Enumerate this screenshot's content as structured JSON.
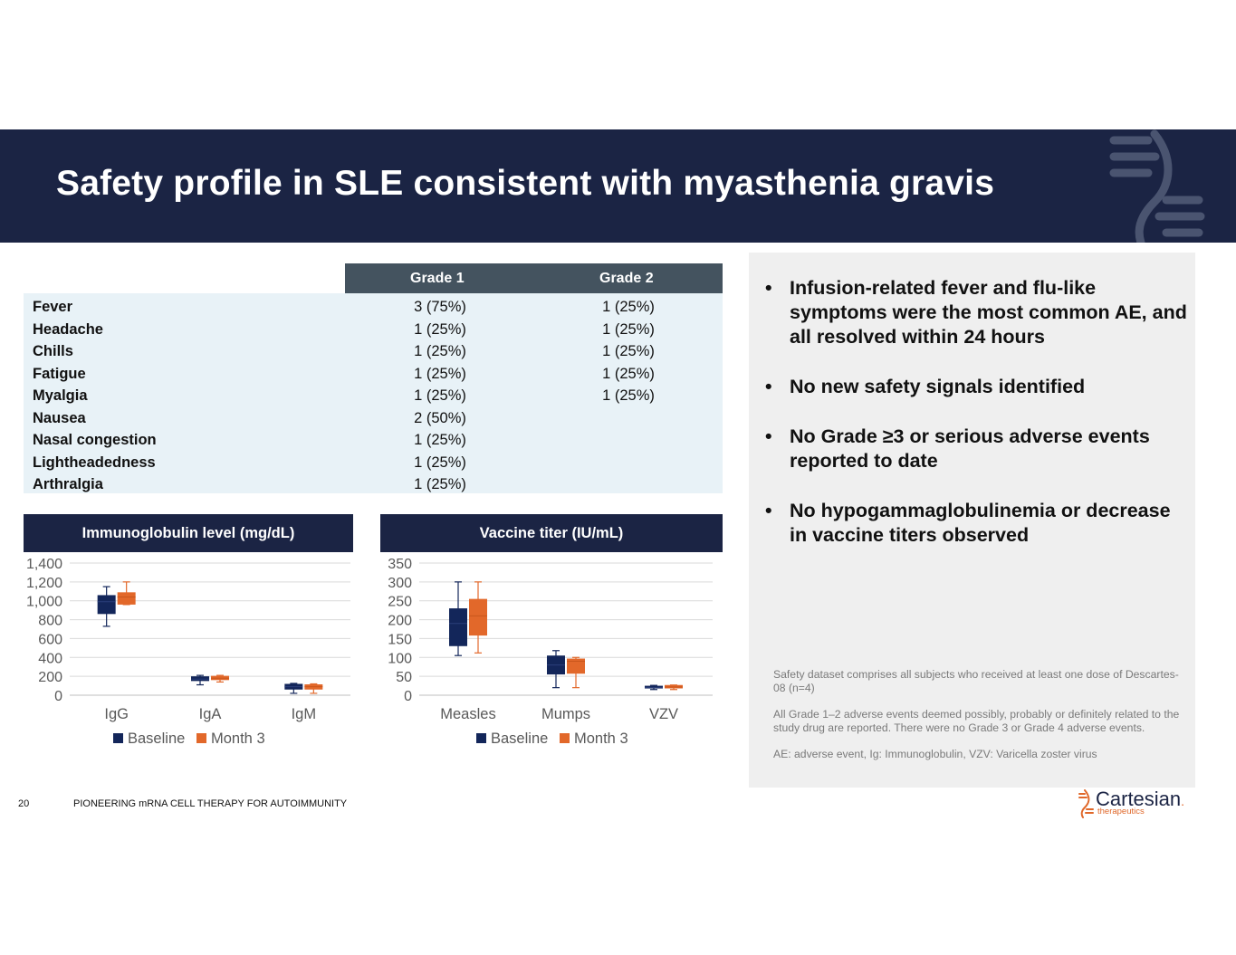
{
  "title": "Safety profile in SLE consistent with myasthenia gravis",
  "ae_table": {
    "headers": [
      "Grade 1",
      "Grade 2"
    ],
    "rows": [
      {
        "name": "Fever",
        "g1": "3 (75%)",
        "g2": "1 (25%)"
      },
      {
        "name": "Headache",
        "g1": "1 (25%)",
        "g2": "1 (25%)"
      },
      {
        "name": "Chills",
        "g1": "1 (25%)",
        "g2": "1 (25%)"
      },
      {
        "name": "Fatigue",
        "g1": "1 (25%)",
        "g2": "1 (25%)"
      },
      {
        "name": "Myalgia",
        "g1": "1 (25%)",
        "g2": "1 (25%)"
      },
      {
        "name": "Nausea",
        "g1": "2 (50%)",
        "g2": ""
      },
      {
        "name": "Nasal congestion",
        "g1": "1 (25%)",
        "g2": ""
      },
      {
        "name": "Lightheadedness",
        "g1": "1 (25%)",
        "g2": ""
      },
      {
        "name": "Arthralgia",
        "g1": "1 (25%)",
        "g2": ""
      }
    ]
  },
  "chart_data": [
    {
      "type": "boxplot",
      "title": "Immunoglobulin level (mg/dL)",
      "categories": [
        "IgG",
        "IgA",
        "IgM"
      ],
      "ylim": [
        0,
        1400
      ],
      "yticks": [
        "0",
        "200",
        "400",
        "600",
        "800",
        "1,000",
        "1,200",
        "1,400"
      ],
      "legend": [
        "Baseline",
        "Month 3"
      ],
      "colors": {
        "Baseline": "#13265a",
        "Month 3": "#e2682a"
      },
      "series": [
        {
          "name": "Baseline",
          "boxes": [
            {
              "min": 730,
              "q1": 860,
              "median": 990,
              "q3": 1060,
              "max": 1150
            },
            {
              "min": 110,
              "q1": 150,
              "median": 170,
              "q3": 200,
              "max": 210
            },
            {
              "min": 20,
              "q1": 60,
              "median": 90,
              "q3": 120,
              "max": 125
            }
          ]
        },
        {
          "name": "Month 3",
          "boxes": [
            {
              "min": 960,
              "q1": 960,
              "median": 1040,
              "q3": 1090,
              "max": 1200
            },
            {
              "min": 140,
              "q1": 160,
              "median": 180,
              "q3": 205,
              "max": 210
            },
            {
              "min": 20,
              "q1": 60,
              "median": 90,
              "q3": 115,
              "max": 120
            }
          ]
        }
      ]
    },
    {
      "type": "boxplot",
      "title": "Vaccine titer (IU/mL)",
      "categories": [
        "Measles",
        "Mumps",
        "VZV"
      ],
      "ylim": [
        0,
        350
      ],
      "yticks": [
        "0",
        "50",
        "100",
        "150",
        "200",
        "250",
        "300",
        "350"
      ],
      "legend": [
        "Baseline",
        "Month 3"
      ],
      "colors": {
        "Baseline": "#13265a",
        "Month 3": "#e2682a"
      },
      "series": [
        {
          "name": "Baseline",
          "boxes": [
            {
              "min": 105,
              "q1": 130,
              "median": 190,
              "q3": 230,
              "max": 300
            },
            {
              "min": 20,
              "q1": 55,
              "median": 80,
              "q3": 105,
              "max": 118
            },
            {
              "min": 15,
              "q1": 18,
              "median": 20,
              "q3": 25,
              "max": 26
            }
          ]
        },
        {
          "name": "Month 3",
          "boxes": [
            {
              "min": 112,
              "q1": 158,
              "median": 210,
              "q3": 255,
              "max": 300
            },
            {
              "min": 20,
              "q1": 57,
              "median": 90,
              "q3": 97,
              "max": 100
            },
            {
              "min": 15,
              "q1": 18,
              "median": 22,
              "q3": 27,
              "max": 27
            }
          ]
        }
      ]
    }
  ],
  "bullets": [
    "Infusion-related fever and flu-like symptoms were the most common AE, and all resolved within 24 hours",
    "No new safety signals identified",
    "No Grade ≥3 or serious adverse events reported to date",
    "No hypogammaglobulinemia or decrease in vaccine titers observed"
  ],
  "notes": [
    "Safety dataset comprises all subjects who received at least one dose of Descartes-08 (n=4)",
    "All Grade 1–2 adverse events deemed possibly, probably or definitely related to the study drug are reported. There were no Grade 3 or Grade 4 adverse events.",
    "AE: adverse event, Ig: Immunoglobulin, VZV: Varicella zoster virus"
  ],
  "footer": {
    "page_number": "20",
    "text": "PIONEERING mRNA CELL THERAPY FOR AUTOIMMUNITY"
  },
  "logo": {
    "name": "Cartesian",
    "sub": "therapeutics",
    "mark": "."
  }
}
